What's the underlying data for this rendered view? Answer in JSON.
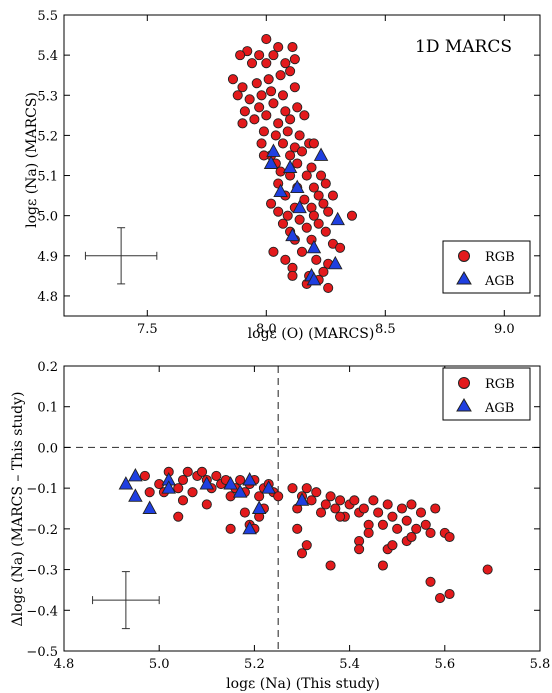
{
  "colors": {
    "rgb": "#e31a1c",
    "agb": "#1f3fe0",
    "edge": "#222222"
  },
  "chart_data": [
    {
      "type": "scatter",
      "title": "",
      "annotation": "1D MARCS",
      "xlabel": "logε (O) (MARCS)",
      "ylabel": "logε (Na) (MARCS)",
      "xlim": [
        7.15,
        9.15
      ],
      "ylim": [
        4.75,
        5.5
      ],
      "xticks": [
        7.5,
        8.0,
        8.5,
        9.0
      ],
      "xtick_labels": [
        "7.5",
        "8.0",
        "8.5",
        "9.0"
      ],
      "yticks": [
        4.8,
        4.9,
        5.0,
        5.1,
        5.2,
        5.3,
        5.4,
        5.5
      ],
      "ytick_labels": [
        "4.8",
        "4.9",
        "5.0",
        "5.1",
        "5.2",
        "5.3",
        "5.4",
        "5.5"
      ],
      "legend": {
        "position": "lower-right",
        "entries": [
          "RGB",
          "AGB"
        ]
      },
      "error_bar": {
        "x": 7.39,
        "y": 4.9,
        "xerr": 0.15,
        "yerr": 0.07
      },
      "series": [
        {
          "name": "RGB",
          "marker": "circle",
          "points": [
            [
              8.0,
              5.44
            ],
            [
              7.92,
              5.41
            ],
            [
              7.97,
              5.4
            ],
            [
              7.89,
              5.4
            ],
            [
              8.03,
              5.4
            ],
            [
              8.05,
              5.42
            ],
            [
              8.11,
              5.42
            ],
            [
              8.08,
              5.38
            ],
            [
              7.94,
              5.38
            ],
            [
              8.0,
              5.38
            ],
            [
              8.12,
              5.39
            ],
            [
              7.86,
              5.34
            ],
            [
              7.9,
              5.32
            ],
            [
              7.96,
              5.33
            ],
            [
              8.01,
              5.34
            ],
            [
              8.06,
              5.35
            ],
            [
              8.1,
              5.36
            ],
            [
              7.88,
              5.3
            ],
            [
              7.93,
              5.29
            ],
            [
              7.98,
              5.3
            ],
            [
              8.02,
              5.31
            ],
            [
              8.07,
              5.3
            ],
            [
              8.12,
              5.32
            ],
            [
              7.91,
              5.26
            ],
            [
              7.97,
              5.27
            ],
            [
              8.03,
              5.28
            ],
            [
              8.08,
              5.26
            ],
            [
              8.13,
              5.27
            ],
            [
              7.9,
              5.23
            ],
            [
              7.95,
              5.24
            ],
            [
              8.0,
              5.25
            ],
            [
              8.05,
              5.23
            ],
            [
              8.1,
              5.24
            ],
            [
              8.16,
              5.25
            ],
            [
              7.99,
              5.21
            ],
            [
              8.04,
              5.2
            ],
            [
              8.09,
              5.21
            ],
            [
              8.14,
              5.2
            ],
            [
              7.98,
              5.18
            ],
            [
              8.07,
              5.18
            ],
            [
              8.12,
              5.17
            ],
            [
              8.18,
              5.18
            ],
            [
              8.2,
              5.18
            ],
            [
              8.02,
              5.15
            ],
            [
              8.1,
              5.15
            ],
            [
              8.15,
              5.16
            ],
            [
              8.04,
              5.13
            ],
            [
              8.13,
              5.13
            ],
            [
              8.19,
              5.12
            ],
            [
              7.99,
              5.15
            ],
            [
              8.06,
              5.11
            ],
            [
              8.1,
              5.1
            ],
            [
              8.17,
              5.1
            ],
            [
              8.23,
              5.1
            ],
            [
              8.05,
              5.08
            ],
            [
              8.13,
              5.07
            ],
            [
              8.2,
              5.07
            ],
            [
              8.25,
              5.08
            ],
            [
              8.08,
              5.05
            ],
            [
              8.16,
              5.04
            ],
            [
              8.22,
              5.05
            ],
            [
              8.28,
              5.05
            ],
            [
              8.02,
              5.03
            ],
            [
              8.12,
              5.02
            ],
            [
              8.19,
              5.02
            ],
            [
              8.24,
              5.03
            ],
            [
              8.05,
              5.01
            ],
            [
              8.09,
              5.0
            ],
            [
              8.14,
              4.99
            ],
            [
              8.2,
              5.0
            ],
            [
              8.26,
              5.01
            ],
            [
              8.36,
              5.0
            ],
            [
              8.07,
              4.98
            ],
            [
              8.17,
              4.97
            ],
            [
              8.22,
              4.98
            ],
            [
              8.1,
              4.96
            ],
            [
              8.25,
              4.96
            ],
            [
              8.12,
              4.94
            ],
            [
              8.19,
              4.94
            ],
            [
              8.28,
              4.93
            ],
            [
              8.03,
              4.91
            ],
            [
              8.15,
              4.91
            ],
            [
              8.31,
              4.92
            ],
            [
              8.08,
              4.89
            ],
            [
              8.21,
              4.89
            ],
            [
              8.26,
              4.88
            ],
            [
              8.11,
              4.87
            ],
            [
              8.24,
              4.86
            ],
            [
              8.11,
              4.85
            ],
            [
              8.18,
              4.85
            ],
            [
              8.22,
              4.84
            ],
            [
              8.17,
              4.83
            ],
            [
              8.26,
              4.82
            ]
          ]
        },
        {
          "name": "AGB",
          "marker": "triangle",
          "points": [
            [
              8.03,
              5.16
            ],
            [
              8.23,
              5.15
            ],
            [
              8.02,
              5.13
            ],
            [
              8.1,
              5.12
            ],
            [
              8.06,
              5.06
            ],
            [
              8.13,
              5.07
            ],
            [
              8.14,
              5.02
            ],
            [
              8.3,
              4.99
            ],
            [
              8.11,
              4.95
            ],
            [
              8.2,
              4.92
            ],
            [
              8.29,
              4.88
            ],
            [
              8.19,
              4.85
            ],
            [
              8.2,
              4.84
            ]
          ]
        }
      ]
    },
    {
      "type": "scatter",
      "title": "",
      "xlabel": "logε (Na) (This study)",
      "ylabel": "Δlogε (Na) (MARCS – This study)",
      "xlim": [
        4.8,
        5.8
      ],
      "ylim": [
        -0.5,
        0.2
      ],
      "xticks": [
        4.8,
        5.0,
        5.2,
        5.4,
        5.6,
        5.8
      ],
      "xtick_labels": [
        "4.8",
        "5.0",
        "5.2",
        "5.4",
        "5.6",
        "5.8"
      ],
      "yticks": [
        -0.5,
        -0.4,
        -0.3,
        -0.2,
        -0.1,
        0.0,
        0.1,
        0.2
      ],
      "ytick_labels": [
        "−0.5",
        "−0.4",
        "−0.3",
        "−0.2",
        "−0.1",
        "0.0",
        "0.1",
        "0.2"
      ],
      "reference_lines": {
        "y": 0.0,
        "x": 5.25
      },
      "legend": {
        "position": "top-right",
        "entries": [
          "RGB",
          "AGB"
        ]
      },
      "error_bar": {
        "x": 4.93,
        "y": -0.375,
        "xerr": 0.07,
        "yerr": 0.07
      },
      "series": [
        {
          "name": "RGB",
          "marker": "circle",
          "points": [
            [
              4.97,
              -0.07
            ],
            [
              5.0,
              -0.09
            ],
            [
              5.02,
              -0.06
            ],
            [
              5.04,
              -0.1
            ],
            [
              5.05,
              -0.08
            ],
            [
              5.06,
              -0.06
            ],
            [
              5.07,
              -0.11
            ],
            [
              5.08,
              -0.07
            ],
            [
              5.09,
              -0.06
            ],
            [
              5.1,
              -0.08
            ],
            [
              5.11,
              -0.1
            ],
            [
              5.12,
              -0.07
            ],
            [
              5.13,
              -0.09
            ],
            [
              5.14,
              -0.08
            ],
            [
              5.15,
              -0.12
            ],
            [
              5.16,
              -0.1
            ],
            [
              5.17,
              -0.08
            ],
            [
              5.18,
              -0.11
            ],
            [
              5.19,
              -0.09
            ],
            [
              5.2,
              -0.08
            ],
            [
              5.21,
              -0.12
            ],
            [
              5.22,
              -0.1
            ],
            [
              5.23,
              -0.09
            ],
            [
              5.24,
              -0.11
            ],
            [
              5.05,
              -0.13
            ],
            [
              5.1,
              -0.14
            ],
            [
              5.15,
              -0.2
            ],
            [
              5.18,
              -0.16
            ],
            [
              5.19,
              -0.19
            ],
            [
              5.21,
              -0.17
            ],
            [
              5.2,
              -0.2
            ],
            [
              5.22,
              -0.15
            ],
            [
              5.25,
              -0.12
            ],
            [
              5.04,
              -0.17
            ],
            [
              4.98,
              -0.11
            ],
            [
              5.01,
              -0.11
            ],
            [
              5.28,
              -0.1
            ],
            [
              5.29,
              -0.15
            ],
            [
              5.3,
              -0.12
            ],
            [
              5.31,
              -0.1
            ],
            [
              5.32,
              -0.13
            ],
            [
              5.33,
              -0.11
            ],
            [
              5.34,
              -0.16
            ],
            [
              5.35,
              -0.14
            ],
            [
              5.36,
              -0.12
            ],
            [
              5.37,
              -0.15
            ],
            [
              5.38,
              -0.13
            ],
            [
              5.39,
              -0.17
            ],
            [
              5.4,
              -0.14
            ],
            [
              5.41,
              -0.13
            ],
            [
              5.42,
              -0.16
            ],
            [
              5.43,
              -0.15
            ],
            [
              5.44,
              -0.19
            ],
            [
              5.45,
              -0.13
            ],
            [
              5.46,
              -0.16
            ],
            [
              5.47,
              -0.19
            ],
            [
              5.48,
              -0.14
            ],
            [
              5.49,
              -0.17
            ],
            [
              5.5,
              -0.2
            ],
            [
              5.51,
              -0.15
            ],
            [
              5.52,
              -0.18
            ],
            [
              5.53,
              -0.14
            ],
            [
              5.54,
              -0.2
            ],
            [
              5.55,
              -0.16
            ],
            [
              5.56,
              -0.19
            ],
            [
              5.57,
              -0.21
            ],
            [
              5.58,
              -0.15
            ],
            [
              5.6,
              -0.21
            ],
            [
              5.61,
              -0.22
            ],
            [
              5.29,
              -0.2
            ],
            [
              5.3,
              -0.26
            ],
            [
              5.31,
              -0.24
            ],
            [
              5.36,
              -0.29
            ],
            [
              5.38,
              -0.17
            ],
            [
              5.42,
              -0.23
            ],
            [
              5.42,
              -0.25
            ],
            [
              5.44,
              -0.21
            ],
            [
              5.47,
              -0.29
            ],
            [
              5.48,
              -0.25
            ],
            [
              5.49,
              -0.24
            ],
            [
              5.52,
              -0.23
            ],
            [
              5.53,
              -0.22
            ],
            [
              5.57,
              -0.33
            ],
            [
              5.59,
              -0.37
            ],
            [
              5.61,
              -0.36
            ],
            [
              5.69,
              -0.3
            ]
          ]
        },
        {
          "name": "AGB",
          "marker": "triangle",
          "points": [
            [
              4.93,
              -0.09
            ],
            [
              4.95,
              -0.07
            ],
            [
              4.95,
              -0.12
            ],
            [
              4.98,
              -0.15
            ],
            [
              5.02,
              -0.08
            ],
            [
              5.02,
              -0.1
            ],
            [
              5.1,
              -0.09
            ],
            [
              5.15,
              -0.09
            ],
            [
              5.17,
              -0.11
            ],
            [
              5.19,
              -0.08
            ],
            [
              5.19,
              -0.2
            ],
            [
              5.21,
              -0.15
            ],
            [
              5.23,
              -0.1
            ],
            [
              5.3,
              -0.13
            ]
          ]
        }
      ]
    }
  ]
}
